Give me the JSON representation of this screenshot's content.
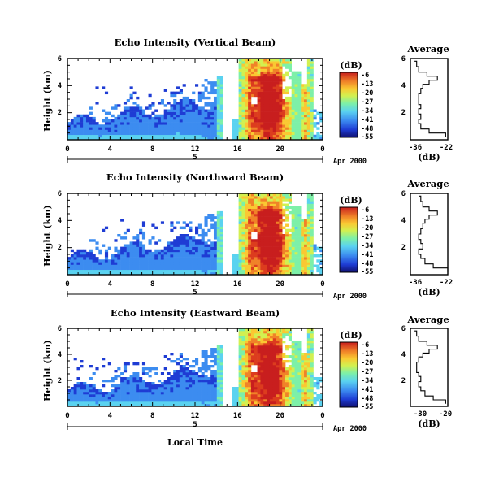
{
  "chart_data": [
    {
      "type": "heatmap",
      "title": "Echo Intensity (Vertical Beam)",
      "ylabel": "Height (km)",
      "y_ticks": [
        "6",
        "4",
        "2"
      ],
      "x_ticks": [
        "0",
        "4",
        "8",
        "12",
        "16",
        "20",
        "0"
      ],
      "date_label": "5",
      "month_year": "Apr 2000",
      "xlim": [
        0,
        24
      ],
      "ylim": [
        0,
        6
      ],
      "colorbar_unit": "(dB)",
      "colorbar_ticks": [
        "-6",
        "-13",
        "-20",
        "-27",
        "-34",
        "-41",
        "-48",
        "-55"
      ],
      "colorbar_range": [
        -55,
        -6
      ],
      "profile": {
        "title": "Average",
        "xlabel": "(dB)",
        "x_ticks": [
          "-36",
          "-22"
        ],
        "xlim": [
          -38,
          -20
        ],
        "y_ticks": [
          "6",
          "4",
          "2"
        ],
        "heights": [
          0.2,
          0.5,
          0.8,
          1.2,
          1.5,
          1.9,
          2.3,
          2.6,
          3.0,
          3.4,
          3.8,
          4.1,
          4.4,
          4.7,
          5.0,
          5.4,
          5.8
        ],
        "values": [
          -21,
          -29,
          -33,
          -34,
          -33,
          -34,
          -33,
          -34,
          -34,
          -33,
          -32,
          -29,
          -25,
          -30,
          -34,
          -35,
          -36
        ]
      }
    },
    {
      "type": "heatmap",
      "title": "Echo Intensity (Northward Beam)",
      "ylabel": "Height (km)",
      "y_ticks": [
        "6",
        "4",
        "2"
      ],
      "x_ticks": [
        "0",
        "4",
        "8",
        "12",
        "16",
        "20",
        "0"
      ],
      "date_label": "5",
      "month_year": "Apr 2000",
      "xlim": [
        0,
        24
      ],
      "ylim": [
        0,
        6
      ],
      "colorbar_unit": "(dB)",
      "colorbar_ticks": [
        "-6",
        "-13",
        "-20",
        "-27",
        "-34",
        "-41",
        "-48",
        "-55"
      ],
      "colorbar_range": [
        -55,
        -6
      ],
      "profile": {
        "title": "Average",
        "xlabel": "(dB)",
        "x_ticks": [
          "-36",
          "-22"
        ],
        "xlim": [
          -38,
          -20
        ],
        "y_ticks": [
          "6",
          "4",
          "2"
        ],
        "heights": [
          0.2,
          0.5,
          0.8,
          1.2,
          1.5,
          1.9,
          2.3,
          2.6,
          3.0,
          3.4,
          3.8,
          4.1,
          4.4,
          4.7,
          5.0,
          5.4,
          5.8
        ],
        "values": [
          -20,
          -27,
          -31,
          -33,
          -34,
          -32,
          -33,
          -34,
          -33,
          -32,
          -31,
          -29,
          -25,
          -29,
          -32,
          -33,
          -34
        ]
      }
    },
    {
      "type": "heatmap",
      "title": "Echo Intensity (Eastward Beam)",
      "ylabel": "Height (km)",
      "y_ticks": [
        "6",
        "4",
        "2"
      ],
      "x_ticks": [
        "0",
        "4",
        "8",
        "12",
        "16",
        "20",
        "0"
      ],
      "date_label": "5",
      "month_year": "Apr 2000",
      "xlabel": "Local Time",
      "xlim": [
        0,
        24
      ],
      "ylim": [
        0,
        6
      ],
      "colorbar_unit": "(dB)",
      "colorbar_ticks": [
        "-6",
        "-13",
        "-20",
        "-27",
        "-34",
        "-41",
        "-48",
        "-55"
      ],
      "colorbar_range": [
        -55,
        -6
      ],
      "profile": {
        "title": "Average",
        "xlabel": "(dB)",
        "x_ticks": [
          "-30",
          "-20"
        ],
        "xlim": [
          -37,
          -19
        ],
        "y_ticks": [
          "6",
          "4",
          "2"
        ],
        "heights": [
          0.2,
          0.5,
          0.8,
          1.2,
          1.5,
          1.9,
          2.3,
          2.6,
          3.0,
          3.4,
          3.8,
          4.1,
          4.4,
          4.7,
          5.0,
          5.4,
          5.8
        ],
        "values": [
          -20,
          -26,
          -30,
          -32,
          -33,
          -32,
          -33,
          -34,
          -34,
          -33,
          -31,
          -28,
          -24,
          -29,
          -33,
          -34,
          -35
        ]
      }
    }
  ],
  "colors": {
    "colormap": [
      "#10106e",
      "#1e3cd4",
      "#3c8cf0",
      "#5ad2f0",
      "#7df0a8",
      "#d2f050",
      "#fac832",
      "#f08228",
      "#dc3c1e",
      "#c81e1e"
    ]
  }
}
